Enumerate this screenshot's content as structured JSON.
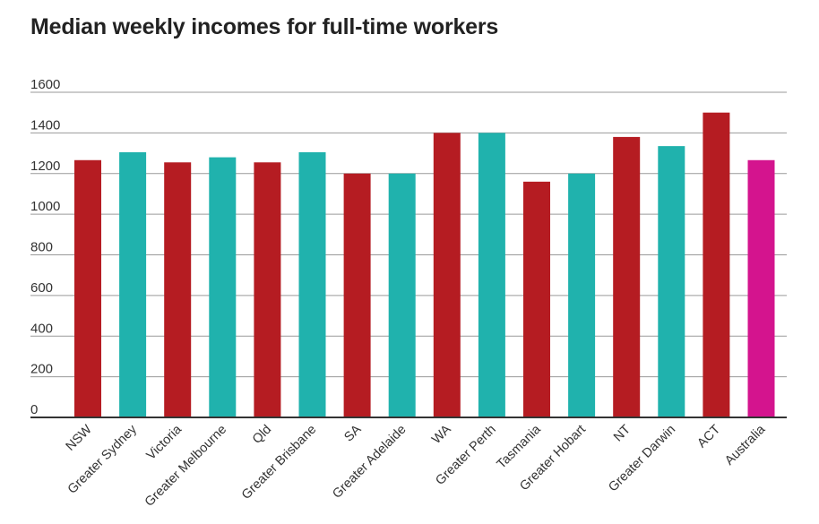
{
  "chart_data": {
    "type": "bar",
    "title": "Median weekly incomes for full-time workers",
    "xlabel": "",
    "ylabel": "",
    "ylim": [
      0,
      1600
    ],
    "yticks": [
      0,
      200,
      400,
      600,
      800,
      1000,
      1200,
      1400,
      1600
    ],
    "grid": true,
    "categories": [
      "NSW",
      "Greater Sydney",
      "Victoria",
      "Greater Melbourne",
      "Qld",
      "Greater Brisbane",
      "SA",
      "Greater Adelaide",
      "WA",
      "Greater Perth",
      "Tasmania",
      "Greater Hobart",
      "NT",
      "Greater Darwin",
      "ACT",
      "Australia"
    ],
    "values": [
      1266,
      1305,
      1255,
      1280,
      1255,
      1305,
      1200,
      1200,
      1400,
      1400,
      1160,
      1200,
      1380,
      1335,
      1500,
      1266
    ],
    "bar_colors": [
      "#b51c22",
      "#20b2ad",
      "#b51c22",
      "#20b2ad",
      "#b51c22",
      "#20b2ad",
      "#b51c22",
      "#20b2ad",
      "#b51c22",
      "#20b2ad",
      "#b51c22",
      "#20b2ad",
      "#b51c22",
      "#20b2ad",
      "#b51c22",
      "#d4148e"
    ]
  }
}
